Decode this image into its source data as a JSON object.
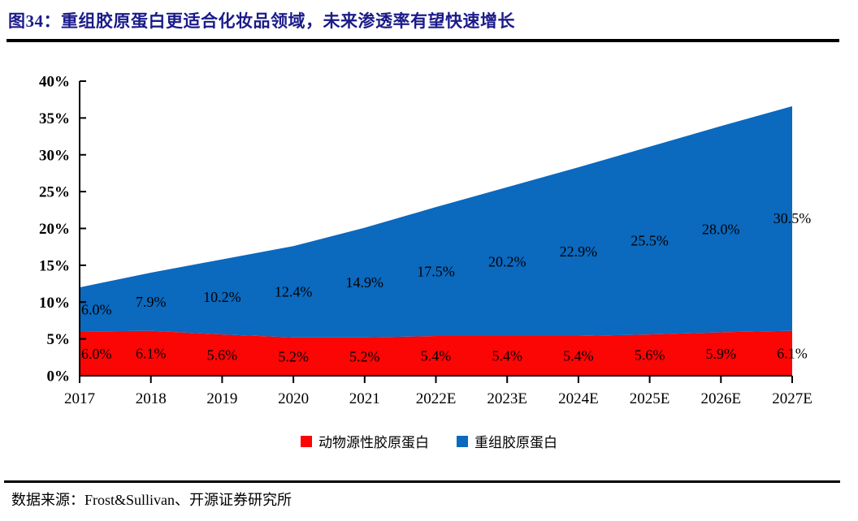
{
  "title": {
    "text": "图34：重组胶原蛋白更适合化妆品领域，未来渗透率有望快速增长"
  },
  "colors": {
    "title": "#1b1b8a",
    "axis": "#000000",
    "animal_red": "#fb0505",
    "recombinant_blue": "#0b69be"
  },
  "chart_data": {
    "type": "area",
    "stacked": true,
    "grid": false,
    "legend_position": "bottom",
    "categories": [
      "2017",
      "2018",
      "2019",
      "2020",
      "2021",
      "2022E",
      "2023E",
      "2024E",
      "2025E",
      "2026E",
      "2027E"
    ],
    "series": [
      {
        "name": "动物源性胶原蛋白",
        "color": "#fb0505",
        "values": [
          6.0,
          6.1,
          5.6,
          5.2,
          5.2,
          5.4,
          5.4,
          5.4,
          5.6,
          5.9,
          6.1
        ],
        "labels": [
          "6.0%",
          "6.1%",
          "5.6%",
          "5.2%",
          "5.2%",
          "5.4%",
          "5.4%",
          "5.4%",
          "5.6%",
          "5.9%",
          "6.1%"
        ]
      },
      {
        "name": "重组胶原蛋白",
        "color": "#0b69be",
        "values": [
          6.0,
          7.9,
          10.2,
          12.4,
          14.9,
          17.5,
          20.2,
          22.9,
          25.5,
          28.0,
          30.5
        ],
        "labels": [
          "6.0%",
          "7.9%",
          "10.2%",
          "12.4%",
          "14.9%",
          "17.5%",
          "20.2%",
          "22.9%",
          "25.5%",
          "28.0%",
          "30.5%"
        ]
      }
    ],
    "ylim": [
      0,
      40
    ],
    "ytick_step": 5,
    "ytick_labels": [
      "0%",
      "5%",
      "10%",
      "15%",
      "20%",
      "25%",
      "30%",
      "35%",
      "40%"
    ],
    "xlabel": "",
    "ylabel": ""
  },
  "footer": {
    "text": "数据来源：Frost&Sullivan、开源证券研究所"
  }
}
